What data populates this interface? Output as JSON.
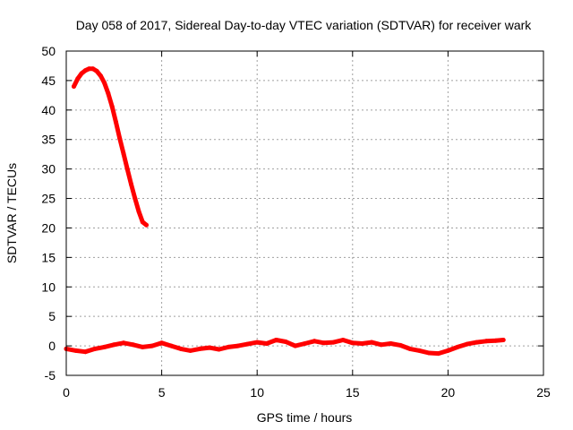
{
  "chart_data": {
    "type": "line",
    "title": "Day 058 of 2017, Sidereal Day-to-day VTEC variation (SDTVAR) for receiver wark",
    "xlabel": "GPS time / hours",
    "ylabel": "SDTVAR / TECUs",
    "xlim": [
      0,
      25
    ],
    "ylim": [
      -5,
      50
    ],
    "xticks": [
      0,
      5,
      10,
      15,
      20,
      25
    ],
    "yticks": [
      -5,
      0,
      5,
      10,
      15,
      20,
      25,
      30,
      35,
      40,
      45,
      50
    ],
    "grid": true,
    "series": [
      {
        "name": "SDTVAR segment 1 (near 0)",
        "color": "#ff0000",
        "x": [
          0.0,
          0.5,
          1.0,
          1.5,
          2.0,
          2.5,
          3.0,
          3.5,
          4.0,
          4.5,
          5.0,
          5.5,
          6.0,
          6.5,
          7.0,
          7.5,
          8.0,
          8.5,
          9.0,
          9.5,
          10.0,
          10.5,
          11.0,
          11.5,
          12.0,
          12.5,
          13.0,
          13.5,
          14.0,
          14.5,
          15.0,
          15.5,
          16.0,
          16.5,
          17.0,
          17.5,
          18.0,
          18.5,
          19.0,
          19.5,
          20.0,
          20.5,
          21.0,
          21.5,
          22.0,
          22.5,
          22.9
        ],
        "y": [
          -0.5,
          -0.8,
          -1.0,
          -0.5,
          -0.2,
          0.2,
          0.5,
          0.2,
          -0.2,
          0.0,
          0.5,
          0.0,
          -0.5,
          -0.8,
          -0.5,
          -0.3,
          -0.6,
          -0.2,
          0.0,
          0.3,
          0.6,
          0.4,
          1.0,
          0.7,
          0.0,
          0.4,
          0.8,
          0.5,
          0.6,
          1.0,
          0.5,
          0.4,
          0.6,
          0.2,
          0.4,
          0.1,
          -0.5,
          -0.8,
          -1.2,
          -1.3,
          -0.8,
          -0.2,
          0.3,
          0.6,
          0.8,
          0.9,
          1.0
        ]
      },
      {
        "name": "SDTVAR segment 2 (peak)",
        "color": "#ff0000",
        "x": [
          0.4,
          0.6,
          0.8,
          1.0,
          1.2,
          1.4,
          1.6,
          1.8,
          2.0,
          2.2,
          2.4,
          2.6,
          2.8,
          3.0,
          3.2,
          3.4,
          3.6,
          3.8,
          4.0,
          4.2
        ],
        "y": [
          44.0,
          45.3,
          46.2,
          46.7,
          47.0,
          47.0,
          46.6,
          45.8,
          44.6,
          42.8,
          40.6,
          38.0,
          35.2,
          32.6,
          30.0,
          27.4,
          25.0,
          22.8,
          21.0,
          20.5
        ]
      }
    ]
  }
}
